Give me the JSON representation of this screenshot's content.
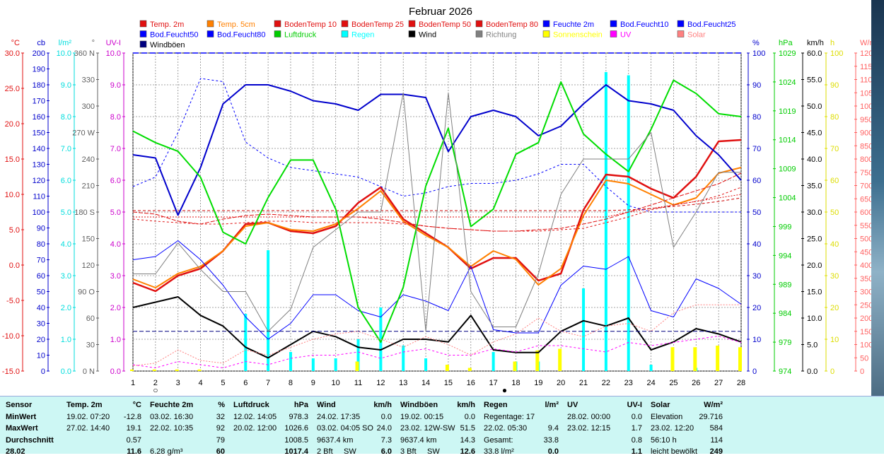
{
  "chart_data": {
    "type": "line",
    "title": "Februar 2026",
    "x": [
      1,
      2,
      3,
      4,
      5,
      6,
      7,
      8,
      9,
      10,
      11,
      12,
      13,
      14,
      15,
      16,
      17,
      18,
      19,
      20,
      21,
      22,
      23,
      24,
      25,
      26,
      27,
      28
    ],
    "x_ticks": [
      "1",
      "2",
      "3",
      "4",
      "5",
      "6",
      "7",
      "8",
      "9",
      "10",
      "11",
      "12",
      "13",
      "14",
      "15",
      "16",
      "17",
      "18",
      "19",
      "20",
      "21",
      "22",
      "23",
      "24",
      "25",
      "26",
      "27",
      "28"
    ],
    "legend": [
      {
        "name": "Temp. 2m",
        "color": "#e01010"
      },
      {
        "name": "Temp. 5cm",
        "color": "#ff8000"
      },
      {
        "name": "BodenTemp 10",
        "color": "#e01010"
      },
      {
        "name": "BodenTemp 25",
        "color": "#e01010"
      },
      {
        "name": "BodenTemp 50",
        "color": "#e01010"
      },
      {
        "name": "BodenTemp 80",
        "color": "#e01010"
      },
      {
        "name": "Feuchte 2m",
        "color": "#0000ff"
      },
      {
        "name": "Bod.Feucht10",
        "color": "#0000ff"
      },
      {
        "name": "Bod.Feucht25",
        "color": "#0000ff"
      },
      {
        "name": "Bod.Feucht50",
        "color": "#0000ff"
      },
      {
        "name": "Bod.Feucht80",
        "color": "#0000ff"
      },
      {
        "name": "Luftdruck",
        "color": "#00cc00"
      },
      {
        "name": "Regen",
        "color": "#00ffff"
      },
      {
        "name": "Wind",
        "color": "#000000"
      },
      {
        "name": "Richtung",
        "color": "#808080"
      },
      {
        "name": "Sonnenschein",
        "color": "#ffff00"
      },
      {
        "name": "UV",
        "color": "#ff00ff"
      },
      {
        "name": "Solar",
        "color": "#ff8080"
      },
      {
        "name": "Windböen",
        "color": "#000080"
      }
    ],
    "axes": [
      {
        "title": "°C",
        "color": "#e01010",
        "ticks": [
          "30.0",
          "25.0",
          "20.0",
          "15.0",
          "10.0",
          "5.0",
          "0.0",
          "-5.0",
          "-10.0",
          "-15.0"
        ]
      },
      {
        "title": "cb",
        "color": "#0000cc",
        "ticks": [
          "200",
          "190",
          "180",
          "170",
          "160",
          "150",
          "140",
          "130",
          "120",
          "110",
          "100",
          "90",
          "80",
          "70",
          "60",
          "50",
          "40",
          "30",
          "20",
          "10",
          "0"
        ]
      },
      {
        "title": "l/m²",
        "color": "#00dddd",
        "ticks": [
          "10.0",
          "9.0",
          "8.0",
          "7.0",
          "6.0",
          "5.0",
          "4.0",
          "3.0",
          "2.0",
          "1.0",
          "0.0"
        ]
      },
      {
        "title": "°",
        "color": "#606060",
        "ticks": [
          "360 N",
          "330",
          "300",
          "270 W",
          "240",
          "210",
          "180 S",
          "150",
          "120",
          "90 O",
          "60",
          "30",
          "0 N"
        ]
      },
      {
        "title": "UV-I",
        "color": "#cc00cc",
        "ticks": [
          "10.0",
          "9.0",
          "8.0",
          "7.0",
          "6.0",
          "5.0",
          "4.0",
          "3.0",
          "2.0",
          "1.0",
          "0.0"
        ]
      },
      {
        "title": "%",
        "color": "#0000cc",
        "ticks": [
          "100",
          "90",
          "80",
          "70",
          "60",
          "50",
          "40",
          "30",
          "20",
          "10",
          "0"
        ]
      },
      {
        "title": "hPa",
        "color": "#00cc00",
        "ticks": [
          "1029",
          "1024",
          "1019",
          "1014",
          "1009",
          "1004",
          "999",
          "994",
          "989",
          "984",
          "979",
          "974"
        ]
      },
      {
        "title": "km/h",
        "color": "#000000",
        "ticks": [
          "60.0",
          "55.0",
          "50.0",
          "45.0",
          "40.0",
          "35.0",
          "30.0",
          "25.0",
          "20.0",
          "15.0",
          "10.0",
          "5.0",
          "0.0"
        ]
      },
      {
        "title": "h",
        "color": "#dddd00",
        "ticks": [
          "100",
          "90",
          "80",
          "70",
          "60",
          "50",
          "40",
          "30",
          "20",
          "10",
          "0"
        ]
      },
      {
        "title": "W/m²",
        "color": "#ff6060",
        "ticks": [
          "1200",
          "1150",
          "1100",
          "1050",
          "1000",
          "950",
          "900",
          "850",
          "800",
          "750",
          "700",
          "650",
          "600",
          "550",
          "500",
          "450",
          "400",
          "350",
          "300",
          "250",
          "200",
          "150",
          "100",
          "50",
          "0"
        ]
      }
    ],
    "ranges": {
      "temp": [
        -15,
        30
      ],
      "pct": [
        0,
        100
      ],
      "hpa": [
        974,
        1029
      ],
      "kmh": [
        0,
        60
      ],
      "deg": [
        0,
        360
      ],
      "rain": [
        0,
        10
      ],
      "uv": [
        0,
        10
      ],
      "solar": [
        0,
        1200
      ],
      "cb": [
        0,
        200
      ]
    },
    "series": [
      {
        "key": "temp2m",
        "name": "Temp. 2m",
        "axis": "temp",
        "color": "#e01010",
        "width": 2.5,
        "values": [
          -2.5,
          -3.7,
          -1.5,
          -0.5,
          2.0,
          5.8,
          6.0,
          4.8,
          4.5,
          5.5,
          8.8,
          11.0,
          6.5,
          4.5,
          2.5,
          -0.5,
          1.0,
          1.0,
          -2.2,
          -1.2,
          7.8,
          12.8,
          12.5,
          10.8,
          9.5,
          12.5,
          17.5,
          17.7
        ]
      },
      {
        "key": "temp5cm",
        "name": "Temp. 5cm",
        "axis": "temp",
        "color": "#ff8000",
        "width": 2,
        "values": [
          -2.0,
          -3.2,
          -1.2,
          -0.2,
          2.0,
          5.5,
          6.0,
          5.0,
          4.8,
          5.8,
          8.0,
          10.5,
          6.2,
          4.2,
          2.5,
          -0.2,
          2.0,
          0.8,
          -2.8,
          -0.5,
          7.0,
          12.0,
          11.5,
          10.0,
          8.5,
          9.5,
          13.0,
          13.8
        ]
      },
      {
        "key": "bt10",
        "name": "BodenTemp 10",
        "axis": "temp",
        "color": "#e01010",
        "width": 1,
        "dash": "6,2",
        "values": [
          7.5,
          7.2,
          6.2,
          5.8,
          6.5,
          7.0,
          7.2,
          7.0,
          6.8,
          6.8,
          6.8,
          6.5,
          6.0,
          5.5,
          5.2,
          5.0,
          4.8,
          4.8,
          5.0,
          5.2,
          5.8,
          6.5,
          7.5,
          8.5,
          9.5,
          10.5,
          11.5,
          13.0
        ]
      },
      {
        "key": "bt25",
        "name": "BodenTemp 25",
        "axis": "temp",
        "color": "#e01010",
        "width": 1,
        "dash": "3,3",
        "values": [
          6.5,
          6.2,
          6.0,
          5.8,
          5.8,
          6.0,
          6.2,
          6.2,
          6.0,
          6.0,
          6.0,
          6.0,
          5.8,
          5.5,
          5.2,
          5.0,
          4.8,
          4.8,
          4.8,
          5.0,
          5.2,
          6.0,
          6.8,
          7.8,
          8.5,
          9.0,
          9.8,
          11.0
        ]
      },
      {
        "key": "bt50",
        "name": "BodenTemp 50",
        "axis": "temp",
        "color": "#e01010",
        "width": 1,
        "dash": "2,2",
        "values": [
          6.8,
          6.8,
          6.8,
          6.8,
          6.8,
          6.8,
          6.8,
          6.8,
          6.8,
          6.8,
          6.8,
          6.8,
          6.8,
          6.8,
          6.8,
          6.8,
          6.8,
          6.8,
          6.8,
          6.8,
          6.8,
          6.8,
          7.5,
          8.0,
          8.5,
          9.0,
          9.5,
          10.0
        ]
      },
      {
        "key": "bt80",
        "name": "BodenTemp 80",
        "axis": "temp",
        "color": "#cc0000",
        "width": 1,
        "dash": "4,3",
        "values": [
          7.7,
          7.7,
          7.7,
          7.7,
          7.7,
          7.7,
          7.7,
          7.7,
          7.7,
          7.7,
          7.7,
          7.7,
          7.7,
          7.7,
          7.7,
          7.7,
          7.7,
          7.7,
          7.7,
          7.7,
          7.7,
          7.7,
          7.8,
          8.0,
          8.3,
          8.6,
          9.0,
          9.5
        ]
      },
      {
        "key": "feuchte",
        "name": "Feuchte 2m",
        "axis": "pct",
        "color": "#0000cc",
        "width": 2,
        "values": [
          68,
          67,
          49,
          64,
          84,
          90,
          90,
          88,
          85,
          84,
          82,
          87,
          87,
          86,
          69,
          80,
          82,
          80,
          74,
          77,
          84,
          90,
          85,
          84,
          82,
          74,
          68,
          60
        ]
      },
      {
        "key": "bf10",
        "name": "Bod.Feucht10",
        "axis": "pct",
        "color": "#0000ff",
        "width": 1,
        "dash": "3,3",
        "values": [
          58,
          61,
          75,
          92,
          91,
          72,
          67,
          64,
          63,
          62,
          61,
          58,
          55,
          56,
          58,
          59,
          59,
          60,
          62,
          65,
          65,
          58,
          52,
          50,
          50,
          50,
          50,
          50
        ]
      },
      {
        "key": "bf25",
        "name": "Bod.Feucht25",
        "axis": "pct",
        "color": "#0000ff",
        "width": 1,
        "values": [
          35,
          36,
          41,
          35,
          27,
          17,
          10,
          15,
          24,
          24,
          19,
          17,
          24,
          22,
          19,
          33,
          13,
          12,
          12,
          27,
          33,
          32,
          36,
          19,
          17,
          29,
          26,
          21
        ]
      },
      {
        "key": "luftdruck",
        "name": "Luftdruck",
        "axis": "hpa",
        "color": "#00dd00",
        "width": 2,
        "values": [
          1015.5,
          1013.5,
          1012,
          1007.5,
          998,
          996,
          1004,
          1010.5,
          1010.5,
          1002,
          985,
          979,
          988.5,
          1006,
          1016,
          999,
          1002,
          1011.5,
          1013.5,
          1024,
          1015,
          1011.5,
          1008.5,
          1015.8,
          1024.3,
          1022,
          1018.5,
          1018
        ]
      },
      {
        "key": "wind",
        "name": "Wind",
        "axis": "kmh",
        "color": "#000000",
        "width": 2,
        "values": [
          12,
          13,
          14,
          10.5,
          8.5,
          4.5,
          2.5,
          5.0,
          7.5,
          6.5,
          4.5,
          4.0,
          6.0,
          6.0,
          5.5,
          10.5,
          4.0,
          3.5,
          3.5,
          7.5,
          9.5,
          8.5,
          10.0,
          4.0,
          5.5,
          8.0,
          7.0,
          5.5
        ]
      },
      {
        "key": "windboen",
        "name": "Windböen",
        "axis": "kmh",
        "color": "#000080",
        "width": 1,
        "dash": "6,3",
        "values": [
          7.5,
          7.5,
          7.5,
          7.5,
          7.5,
          7.5,
          7.5,
          7.5,
          7.5,
          7.5,
          7.5,
          7.5,
          7.5,
          7.5,
          7.5,
          7.5,
          7.5,
          7.5,
          7.5,
          7.5,
          7.5,
          7.5,
          7.5,
          7.5,
          7.5,
          7.5,
          7.5,
          7.5
        ]
      },
      {
        "key": "richtung",
        "name": "Richtung",
        "axis": "deg",
        "color": "#808080",
        "width": 1,
        "values": [
          110,
          110,
          145,
          115,
          90,
          90,
          45,
          70,
          140,
          160,
          180,
          180,
          315,
          45,
          315,
          90,
          50,
          50,
          110,
          200,
          240,
          240,
          240,
          270,
          140,
          180,
          225,
          225
        ]
      },
      {
        "key": "uv",
        "name": "UV",
        "axis": "uv",
        "color": "#ff00ff",
        "width": 1,
        "dash": "3,3",
        "values": [
          0.2,
          0.1,
          0.3,
          0.2,
          0.1,
          0.3,
          0.2,
          0.4,
          0.5,
          0.5,
          0.6,
          0.4,
          0.6,
          0.7,
          0.5,
          0.5,
          0.7,
          0.6,
          0.8,
          0.8,
          0.7,
          0.6,
          0.9,
          0.8,
          0.9,
          1.0,
          1.1,
          0.9
        ]
      },
      {
        "key": "solar",
        "name": "Solar",
        "axis": "solar",
        "color": "#ff8080",
        "width": 1,
        "dash": "2,2",
        "values": [
          20,
          30,
          80,
          40,
          30,
          80,
          60,
          90,
          120,
          140,
          150,
          120,
          90,
          130,
          100,
          60,
          110,
          140,
          200,
          150,
          130,
          170,
          180,
          150,
          220,
          250,
          250,
          250
        ]
      }
    ],
    "bars": [
      {
        "key": "regen",
        "name": "Regen",
        "axis": "rain",
        "color": "#00ffff",
        "values": [
          0,
          0,
          0,
          0,
          0,
          1.8,
          3.8,
          0.6,
          0.4,
          0.4,
          1.0,
          2.0,
          0.8,
          0.4,
          0,
          0,
          0.6,
          0.3,
          0.3,
          0,
          2.6,
          9.4,
          9.3,
          0.2,
          0,
          0.1,
          0,
          0
        ]
      },
      {
        "key": "sonne",
        "name": "Sonnenschein",
        "axis": "sun",
        "color": "#ffff00",
        "values": [
          0.5,
          0.5,
          0.5,
          0.5,
          0,
          0,
          0,
          0,
          0,
          0,
          3,
          0,
          0,
          0,
          2,
          1,
          0,
          3,
          6.5,
          7,
          0,
          0,
          0,
          0,
          7.5,
          7.5,
          8,
          7.5
        ]
      }
    ],
    "markers": [
      {
        "label": "Neumond",
        "symbol": "○",
        "x": 2
      },
      {
        "label": "Vollmond",
        "symbol": "●",
        "x": 17.5
      }
    ]
  },
  "stats": {
    "sensor": {
      "header": "Sensor",
      "rows": [
        "MinWert",
        "MaxWert",
        "Durchschnitt",
        "28.02"
      ]
    },
    "temp": {
      "header": "Temp. 2m",
      "unit": "°C",
      "rows": [
        [
          "19.02.  07:20",
          "-12.8"
        ],
        [
          "27.02.  14:40",
          "19.1"
        ],
        [
          "",
          "0.57"
        ],
        [
          "",
          "11.6"
        ]
      ]
    },
    "feuchte": {
      "header": "Feuchte 2m",
      "unit": "%",
      "rows": [
        [
          "03.02.  16:30",
          "32"
        ],
        [
          "22.02.  10:35",
          "92"
        ],
        [
          "",
          "79"
        ],
        [
          "6.28 g/m³",
          "60"
        ]
      ]
    },
    "druck": {
      "header": "Luftdruck",
      "unit": "hPa",
      "rows": [
        [
          "12.02.  14:05",
          "978.3"
        ],
        [
          "20.02.  12:00",
          "1026.6"
        ],
        [
          "",
          "1008.5"
        ],
        [
          "",
          "1017.4"
        ]
      ]
    },
    "wind": {
      "header": "Wind",
      "unit": "km/h",
      "rows": [
        [
          "24.02.  17:35",
          "",
          "0.0"
        ],
        [
          "03.02.  04:05",
          "SO",
          "24.0"
        ],
        [
          "9637.4 km",
          "",
          "7.3"
        ],
        [
          "2 Bft",
          "SW",
          "6.0"
        ]
      ]
    },
    "boen": {
      "header": "Windböen",
      "unit": "km/h",
      "rows": [
        [
          "19.02.  00:15",
          "",
          "0.0"
        ],
        [
          "23.02.  12",
          "W-SW",
          "51.5"
        ],
        [
          "9637.4 km",
          "",
          "14.3"
        ],
        [
          "3 Bft",
          "SW",
          "12.6"
        ]
      ]
    },
    "regen": {
      "header": "Regen",
      "unit": "l/m²",
      "rows": [
        [
          "Regentage: 17",
          ""
        ],
        [
          "22.02.  05:30",
          "9.4"
        ],
        [
          "Gesamt:",
          "33.8"
        ],
        [
          "33.8 l/m²",
          "0.0"
        ]
      ]
    },
    "uv": {
      "header": "UV",
      "unit": "UV-I",
      "rows": [
        [
          "28.02.  00:00",
          "0.0"
        ],
        [
          "23.02.  12:15",
          "1.7"
        ],
        [
          "",
          "0.8"
        ],
        [
          "",
          "1.1"
        ]
      ]
    },
    "solar": {
      "header": "Solar",
      "unit": "W/m²",
      "rows": [
        [
          "Elevation",
          "29.716"
        ],
        [
          "23.02.  12:20",
          "584"
        ],
        [
          "56:10 h",
          "114"
        ],
        [
          "leicht bewölkt",
          "249"
        ]
      ]
    }
  }
}
